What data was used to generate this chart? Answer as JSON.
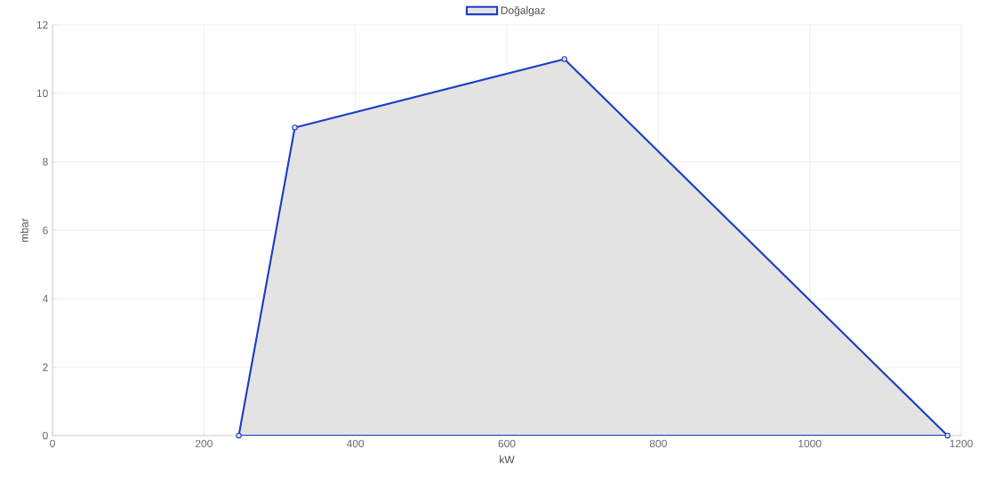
{
  "chart_data": {
    "type": "area",
    "xlabel": "kW",
    "ylabel": "mbar",
    "x": [
      246,
      320,
      676,
      1182
    ],
    "series": [
      {
        "name": "Doğalgaz",
        "color": "#1c3fc4",
        "values": [
          0,
          9,
          11,
          0
        ]
      }
    ],
    "xlim": [
      0,
      1200
    ],
    "ylim": [
      0,
      12
    ],
    "xticks": [
      0,
      200,
      400,
      600,
      800,
      1000,
      1200
    ],
    "yticks": [
      0,
      2,
      4,
      6,
      8,
      10,
      12
    ],
    "grid": true,
    "legend": "top",
    "marker": "circle",
    "line_style": "solid"
  }
}
